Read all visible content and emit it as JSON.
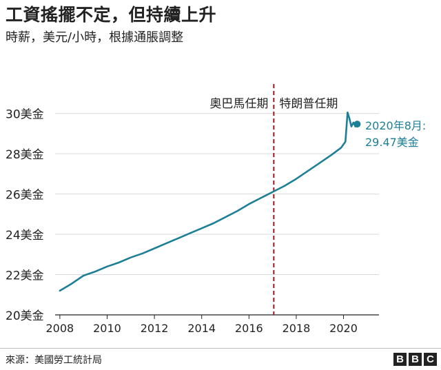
{
  "header": {
    "title": "工資搖擺不定，但持續上升",
    "subtitle": "時薪，美元/小時，根據通脹調整"
  },
  "footer": {
    "source": "來源：美國勞工統計局",
    "logo_letters": [
      "B",
      "B",
      "C"
    ]
  },
  "colors": {
    "line": "#1d7f96",
    "divider": "#9b1a1a",
    "grid": "#d9d9d9",
    "axis": "#222222"
  },
  "chart_data": {
    "type": "line",
    "title": "工資搖擺不定，但持續上升",
    "ylabel": "時薪，美元/小時，根據通脹調整",
    "xlim": [
      2007.8,
      2021.5
    ],
    "ylim": [
      20,
      30.5
    ],
    "x_ticks": [
      2008,
      2010,
      2012,
      2014,
      2016,
      2018,
      2020
    ],
    "y_ticks": [
      20,
      22,
      24,
      26,
      28,
      30
    ],
    "y_tick_labels": [
      "20美金",
      "22美金",
      "24美金",
      "26美金",
      "28美金",
      "30美金"
    ],
    "series": [
      {
        "name": "時薪",
        "x": [
          2008.0,
          2008.5,
          2009.0,
          2009.5,
          2010.0,
          2010.5,
          2011.0,
          2011.5,
          2012.0,
          2012.5,
          2013.0,
          2013.5,
          2014.0,
          2014.5,
          2015.0,
          2015.5,
          2016.0,
          2016.5,
          2017.0,
          2017.5,
          2018.0,
          2018.5,
          2019.0,
          2019.5,
          2019.9,
          2020.08,
          2020.17,
          2020.25,
          2020.33,
          2020.42,
          2020.5,
          2020.58
        ],
        "values": [
          21.2,
          21.55,
          21.95,
          22.15,
          22.4,
          22.6,
          22.85,
          23.05,
          23.3,
          23.55,
          23.8,
          24.05,
          24.3,
          24.55,
          24.85,
          25.15,
          25.5,
          25.8,
          26.1,
          26.4,
          26.75,
          27.15,
          27.55,
          27.95,
          28.3,
          28.6,
          30.05,
          29.75,
          29.35,
          29.55,
          29.35,
          29.47
        ]
      }
    ],
    "divider": {
      "x": 2017.05,
      "left_label": "奧巴馬任期",
      "right_label": "特朗普任期"
    },
    "annotation": {
      "x": 2020.58,
      "y": 29.47,
      "text_line1": "2020年8月:",
      "text_line2": "29.47美金"
    }
  }
}
